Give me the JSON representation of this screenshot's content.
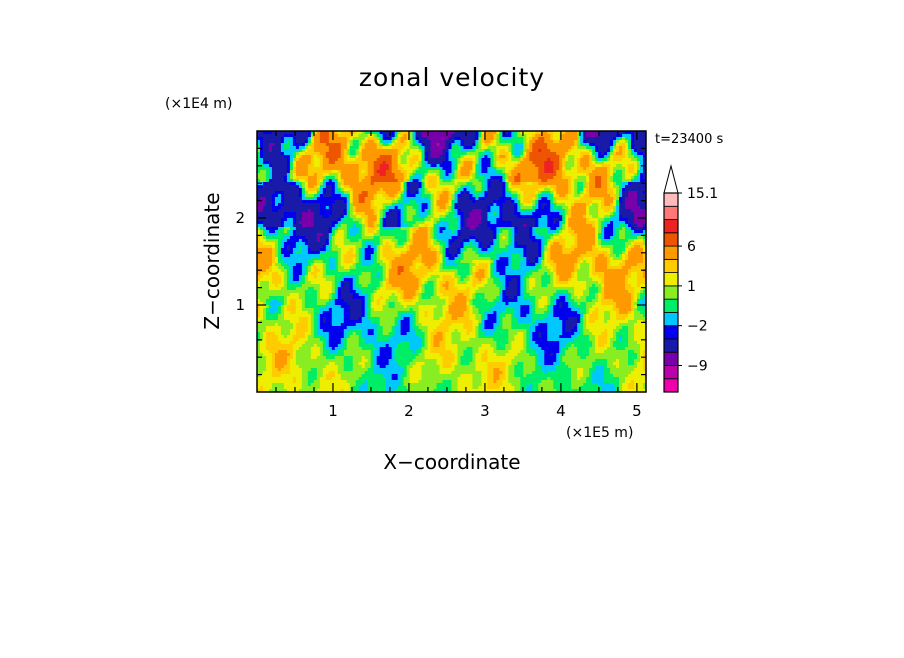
{
  "chart_data": {
    "type": "heatmap",
    "title": "zonal velocity",
    "xlabel": "X−coordinate",
    "ylabel": "Z−coordinate",
    "x_unit": "(×1E5 m)",
    "y_unit": "(×1E4 m)",
    "time_label": "t=23400 s",
    "xlim": [
      0,
      5.12
    ],
    "ylim": [
      0,
      3.0
    ],
    "x_ticks": [
      {
        "value": 1,
        "label": "1"
      },
      {
        "value": 2,
        "label": "2"
      },
      {
        "value": 3,
        "label": "3"
      },
      {
        "value": 4,
        "label": "4"
      },
      {
        "value": 5,
        "label": "5"
      }
    ],
    "y_ticks": [
      {
        "value": 1,
        "label": "1"
      },
      {
        "value": 2,
        "label": "2"
      }
    ],
    "colorbar": {
      "levels": [
        -15,
        -12,
        -9,
        -6,
        -3,
        -2,
        -1,
        0,
        1,
        2,
        3,
        6,
        9,
        12,
        15.1
      ],
      "colors": [
        "#ee00aa",
        "#bb00aa",
        "#7700aa",
        "#1a1aa8",
        "#0000ee",
        "#00c8ff",
        "#00ee66",
        "#88ee22",
        "#eeee00",
        "#ffcc00",
        "#ff9900",
        "#ee5500",
        "#ee2222",
        "#ff7777",
        "#ffbbbb"
      ],
      "extend_max": true,
      "tick_labels": [
        {
          "value": 15.1,
          "label": "15.1"
        },
        {
          "value": 6,
          "label": "6"
        },
        {
          "value": 1,
          "label": "1"
        },
        {
          "value": -2,
          "label": "−2"
        },
        {
          "value": -9,
          "label": "−9"
        }
      ]
    }
  }
}
